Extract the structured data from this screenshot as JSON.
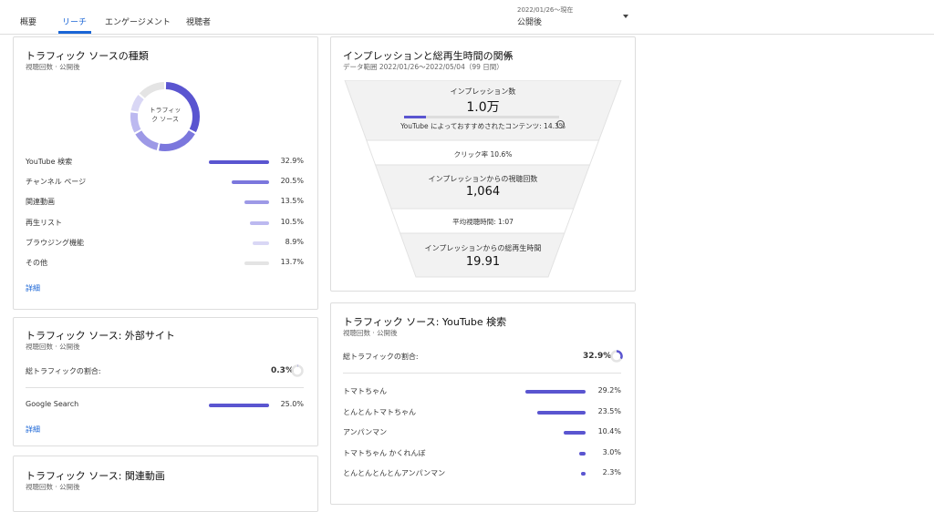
{
  "tabs": [
    "概要",
    "リーチ",
    "エンゲージメント",
    "視聴者"
  ],
  "date_range": {
    "period": "2022/01/26～現在",
    "label": "公開後"
  },
  "traffic_sources": {
    "title": "トラフィック ソースの種類",
    "subtitle": "視聴回数 · 公開後",
    "donut_center": "トラフィック ソース",
    "items": [
      {
        "label": "YouTube 検索",
        "value": 32.9,
        "value_label": "32.9%",
        "color": "#5a55d0"
      },
      {
        "label": "チャンネル ページ",
        "value": 20.5,
        "value_label": "20.5%",
        "color": "#7b77dd"
      },
      {
        "label": "関連動画",
        "value": 13.5,
        "value_label": "13.5%",
        "color": "#9d99e6"
      },
      {
        "label": "再生リスト",
        "value": 10.5,
        "value_label": "10.5%",
        "color": "#bcb9f0"
      },
      {
        "label": "ブラウジング機能",
        "value": 8.9,
        "value_label": "8.9%",
        "color": "#d9d7f5"
      },
      {
        "label": "その他",
        "value": 13.7,
        "value_label": "13.7%",
        "color": "#e4e4e4"
      }
    ],
    "more": "詳細"
  },
  "external": {
    "title": "トラフィック ソース: 外部サイト",
    "subtitle": "視聴回数 · 公開後",
    "share_label": "総トラフィックの割合:",
    "share": 0.3,
    "share_text": "0.3%",
    "items": [
      {
        "label": "Google Search",
        "value": 25.0,
        "value_label": "25.0%",
        "color": "#5a55d0"
      }
    ],
    "more": "詳細"
  },
  "related": {
    "title": "トラフィック ソース: 関連動画",
    "subtitle": "視聴回数 · 公開後"
  },
  "funnel": {
    "title": "インプレッションと総再生時間の関係",
    "date_range": "データ範囲 2022/01/26～2022/05/04（99 日間）",
    "impressions_label": "インプレッション数",
    "impressions": "1.0万",
    "recommend_share": 14.3,
    "recommend_label": "YouTube によっておすすめされたコンテンツ: 14.3%",
    "ctr": "クリック率 10.6%",
    "views_label": "インプレッションからの視聴回数",
    "views": "1,064",
    "duration": "平均視聴時間: 1:07",
    "watch_label": "インプレッションからの総再生時間",
    "watch": "19.91"
  },
  "search": {
    "title": "トラフィック ソース: YouTube 検索",
    "subtitle": "視聴回数 · 公開後",
    "share_label": "総トラフィックの割合:",
    "share": 32.9,
    "share_text": "32.9%",
    "items": [
      {
        "label": "トマトちゃん",
        "value": 29.2,
        "value_label": "29.2%",
        "color": "#5a55d0"
      },
      {
        "label": "とんとんトマトちゃん",
        "value": 23.5,
        "value_label": "23.5%",
        "color": "#5a55d0"
      },
      {
        "label": "アンパンマン",
        "value": 10.4,
        "value_label": "10.4%",
        "color": "#5a55d0"
      },
      {
        "label": "トマトちゃん かくれんぼ",
        "value": 3.0,
        "value_label": "3.0%",
        "color": "#5a55d0"
      },
      {
        "label": "とんとんとんとんアンパンマン",
        "value": 2.3,
        "value_label": "2.3%",
        "color": "#5a55d0"
      }
    ]
  }
}
